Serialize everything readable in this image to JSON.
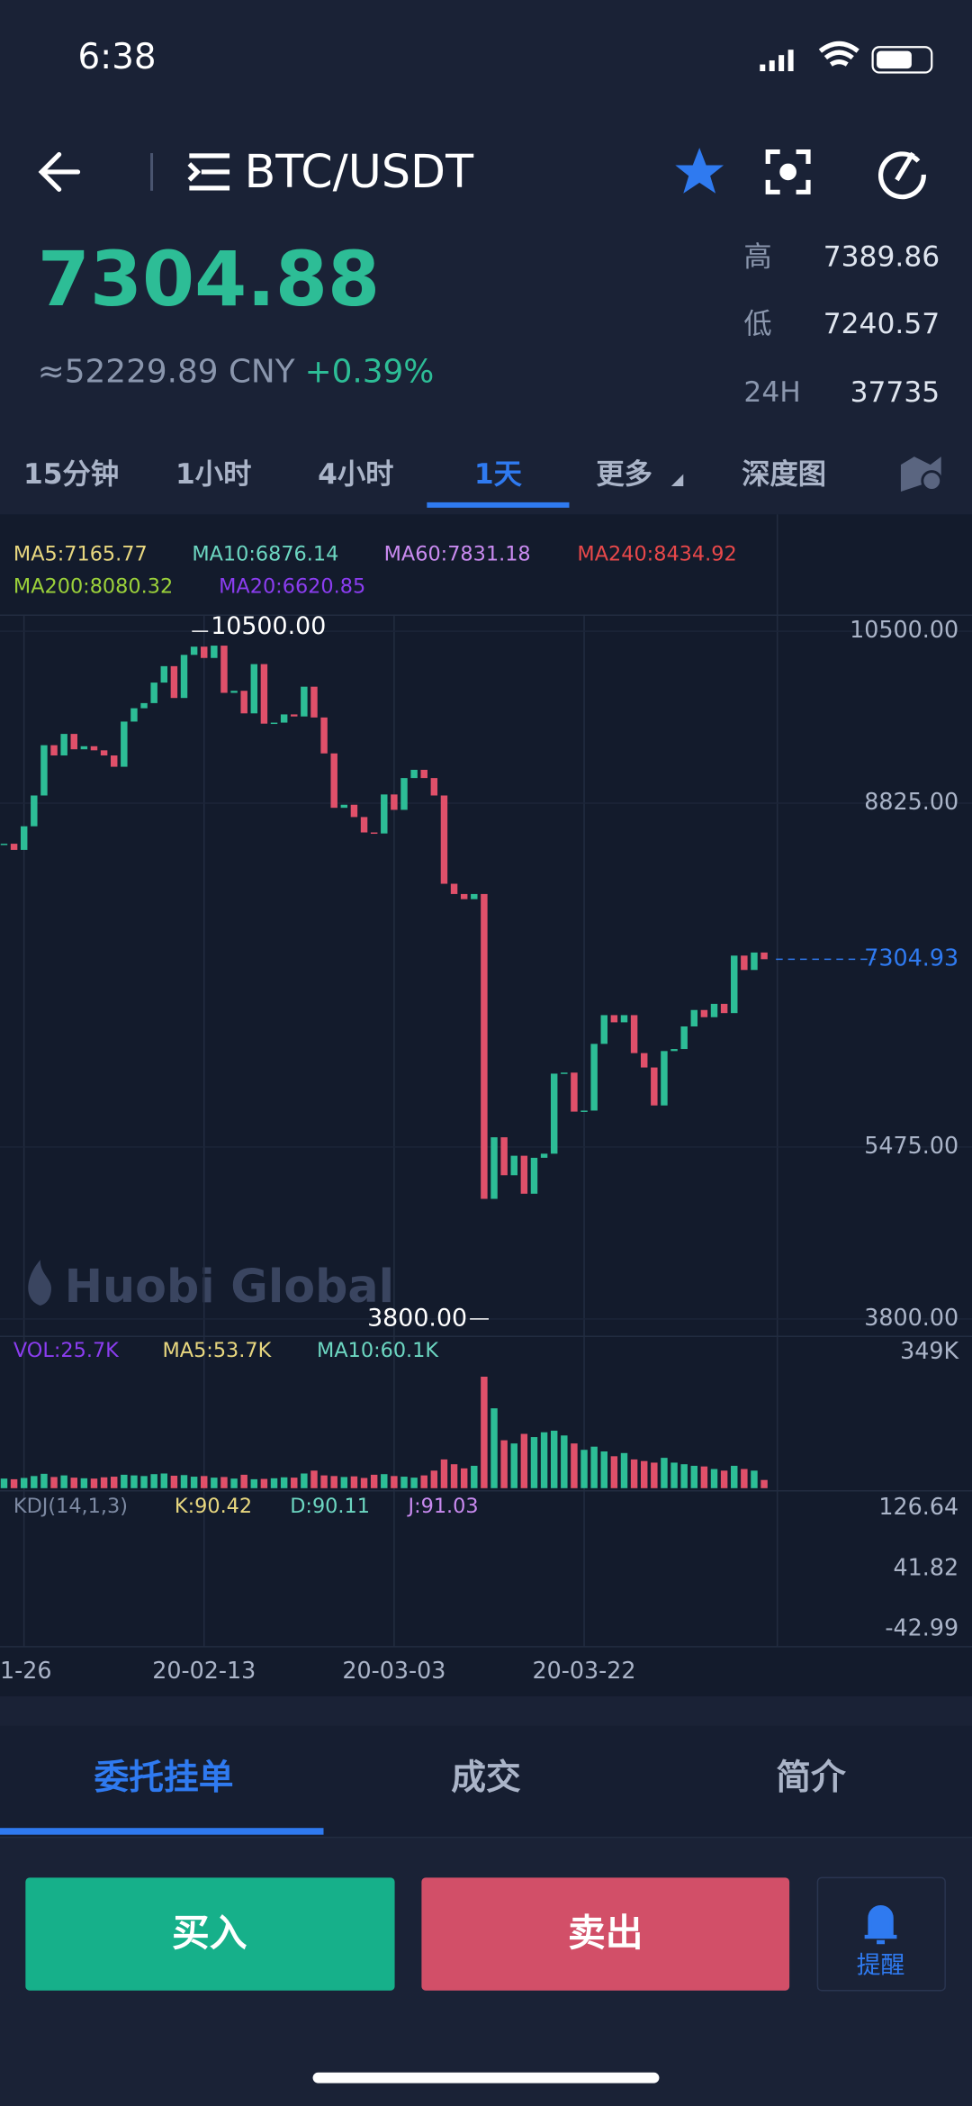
{
  "status_bar": {
    "time": "6:38"
  },
  "header": {
    "pair": "BTC/USDT"
  },
  "ticker": {
    "price": "7304.88",
    "cny": "≈52229.89 CNY",
    "change": "+0.39%",
    "stats": [
      {
        "label": "高",
        "value": "7389.86"
      },
      {
        "label": "低",
        "value": "7240.57"
      },
      {
        "label": "24H",
        "value": "37735"
      }
    ]
  },
  "intervals": {
    "items": [
      "15分钟",
      "1小时",
      "4小时",
      "1天",
      "更多",
      "深度图"
    ],
    "active": 3
  },
  "chart_data": {
    "type": "candlestick",
    "ma_legend": [
      {
        "text": "MA5:7165.77",
        "color": "#e8d77f"
      },
      {
        "text": "MA10:6876.14",
        "color": "#6cd6c1"
      },
      {
        "text": "MA60:7831.18",
        "color": "#c98af0"
      },
      {
        "text": "MA240:8434.92",
        "color": "#e8484a"
      },
      {
        "text": "MA200:8080.32",
        "color": "#9bd13a"
      },
      {
        "text": "MA20:6620.85",
        "color": "#8b3df0"
      }
    ],
    "categories": [
      null,
      null,
      "1-26",
      null,
      null,
      null,
      null,
      null,
      null,
      null,
      null,
      null,
      null,
      null,
      null,
      null,
      null,
      null,
      null,
      null,
      "20-02-13",
      null,
      null,
      null,
      null,
      null,
      null,
      null,
      null,
      null,
      null,
      null,
      null,
      null,
      null,
      null,
      null,
      null,
      null,
      "20-03-03",
      null,
      null,
      null,
      null,
      null,
      null,
      null,
      null,
      null,
      null,
      null,
      null,
      null,
      null,
      null,
      null,
      null,
      null,
      "20-03-22",
      null,
      null,
      null,
      null,
      null,
      null,
      null,
      null,
      null,
      null,
      null,
      null,
      null,
      null,
      null,
      null,
      null,
      null
    ],
    "closes": [
      8430,
      8370,
      8600,
      8900,
      9390,
      9290,
      9500,
      9350,
      9380,
      9340,
      9290,
      9180,
      9620,
      9750,
      9800,
      10000,
      10160,
      9850,
      10270,
      10350,
      10240,
      10360,
      9900,
      9920,
      9700,
      10180,
      9600,
      9610,
      9690,
      9670,
      9960,
      9660,
      9310,
      8780,
      8810,
      8690,
      8540,
      8530,
      8910,
      8760,
      9070,
      9150,
      9070,
      8900,
      8040,
      7940,
      7890,
      7940,
      4970,
      5570,
      5200,
      5390,
      5020,
      5370,
      5410,
      6190,
      6200,
      5820,
      5830,
      6480,
      6760,
      6690,
      6760,
      6390,
      6250,
      5880,
      6410,
      6430,
      6650,
      6810,
      6740,
      6870,
      6780,
      7340,
      7200,
      7370,
      7304.93
    ],
    "up_color": "#2dbd96",
    "down_color": "#e0506a",
    "ylim": [
      3800,
      10500
    ],
    "yticks": [
      {
        "value": 10500,
        "label": "10500.00"
      },
      {
        "value": 8825,
        "label": "8825.00"
      },
      {
        "value": 5475,
        "label": "5475.00"
      },
      {
        "value": 3800,
        "label": "3800.00"
      }
    ],
    "last_price": {
      "value": 7304.93,
      "label": "7304.93"
    },
    "high_marker": {
      "value": 10500,
      "label": "10500.00"
    },
    "low_marker": {
      "value": 3800,
      "label": "3800.00"
    },
    "watermark": "Huobi Global",
    "volume": {
      "legend": [
        {
          "text": "VOL:25.7K",
          "color": "#8b3df0"
        },
        {
          "text": "MA5:53.7K",
          "color": "#e8d77f"
        },
        {
          "text": "MA10:60.1K",
          "color": "#6cd6c1"
        }
      ],
      "values": [
        30,
        28,
        32,
        38,
        45,
        35,
        40,
        33,
        31,
        30,
        34,
        36,
        42,
        40,
        38,
        44,
        46,
        39,
        41,
        36,
        38,
        33,
        35,
        30,
        42,
        28,
        29,
        31,
        34,
        33,
        46,
        55,
        40,
        38,
        35,
        37,
        32,
        42,
        44,
        38,
        36,
        33,
        40,
        55,
        90,
        75,
        62,
        70,
        349,
        250,
        150,
        140,
        170,
        160,
        175,
        180,
        165,
        140,
        120,
        130,
        115,
        100,
        110,
        90,
        85,
        80,
        95,
        80,
        75,
        70,
        68,
        60,
        55,
        70,
        60,
        55,
        25.7
      ],
      "ylim": [
        0,
        349
      ],
      "yticks": [
        {
          "value": 349,
          "label": "349K"
        }
      ]
    },
    "kdj": {
      "legend": [
        {
          "text": "KDJ(14,1,3)",
          "color": "#7d8aa3"
        },
        {
          "text": "K:90.42",
          "color": "#e8d77f"
        },
        {
          "text": "D:90.11",
          "color": "#6cd6c1"
        },
        {
          "text": "J:91.03",
          "color": "#c98af0"
        }
      ],
      "ylim": [
        -42.99,
        126.64
      ],
      "yticks": [
        126.64,
        41.82,
        -42.99
      ]
    }
  },
  "bottom_tabs": {
    "items": [
      "委托挂单",
      "成交",
      "简介"
    ],
    "active": 0
  },
  "actions": {
    "buy": "买入",
    "sell": "卖出",
    "alert": "提醒"
  }
}
